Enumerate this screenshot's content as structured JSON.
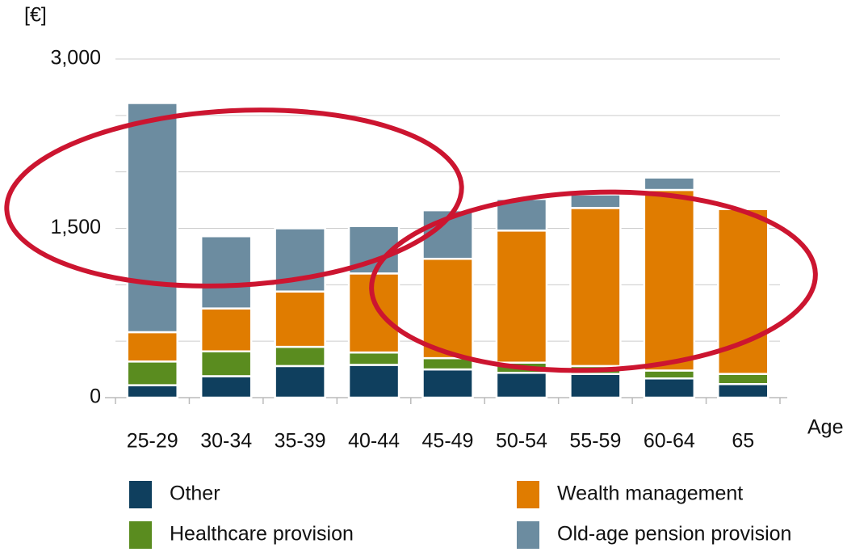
{
  "chart_data": {
    "type": "stacked_bar",
    "y_unit_label": "[€]",
    "x_axis_label": "Age",
    "categories": [
      "25-29",
      "30-34",
      "35-39",
      "40-44",
      "45-49",
      "50-54",
      "55-59",
      "60-64",
      "65"
    ],
    "series": [
      {
        "name": "Other",
        "color": "#0f3f5e",
        "values": [
          110,
          190,
          280,
          290,
          250,
          220,
          210,
          170,
          120
        ]
      },
      {
        "name": "Healthcare provision",
        "color": "#5a8c1f",
        "values": [
          210,
          220,
          170,
          110,
          100,
          90,
          70,
          70,
          90
        ]
      },
      {
        "name": "Wealth management",
        "color": "#e07c00",
        "values": [
          260,
          380,
          490,
          700,
          880,
          1170,
          1400,
          1600,
          1460
        ]
      },
      {
        "name": "Old-age pension provision",
        "color": "#6c8ca0",
        "values": [
          2030,
          640,
          560,
          420,
          430,
          280,
          120,
          110,
          0
        ]
      }
    ],
    "ylim": [
      0,
      3000
    ],
    "yticks": [
      0,
      {
        "value": 1500,
        "label": "1,500"
      },
      {
        "value": 3000,
        "label": "3,000"
      }
    ],
    "ygrid": [
      500,
      1000,
      1500,
      2000,
      2500,
      3000
    ],
    "grid": true
  }
}
